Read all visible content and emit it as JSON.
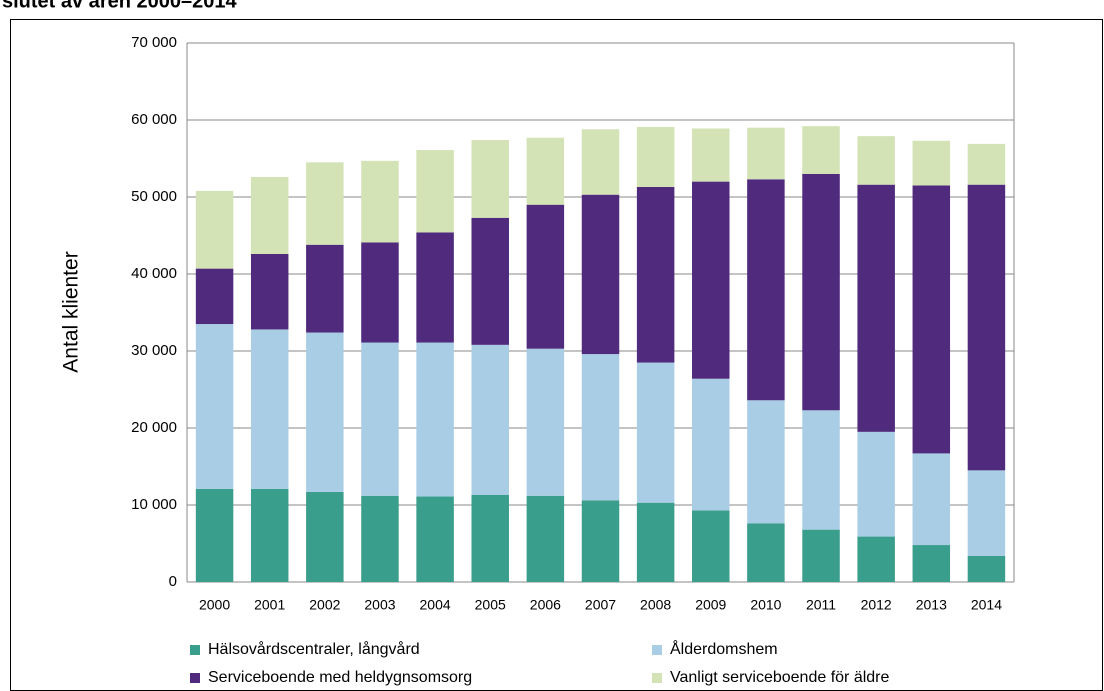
{
  "chart_data": {
    "type": "stacked_bar",
    "title": "slutet av åren 2000–2014",
    "y_label": "Antal klienter",
    "categories": [
      "2000",
      "2001",
      "2002",
      "2003",
      "2004",
      "2005",
      "2006",
      "2007",
      "2008",
      "2009",
      "2010",
      "2011",
      "2012",
      "2013",
      "2014"
    ],
    "series": [
      {
        "name": "Hälsovårdscentraler, långvård",
        "color": "#3a9e8c",
        "values": [
          12100,
          12100,
          11700,
          11200,
          11100,
          11300,
          11200,
          10600,
          10300,
          9300,
          7600,
          6800,
          5900,
          4800,
          3400
        ]
      },
      {
        "name": "Ålderdomshem",
        "color": "#a9cde5",
        "values": [
          21400,
          20700,
          20700,
          19900,
          20000,
          19500,
          19100,
          19000,
          18200,
          17100,
          16000,
          15500,
          13600,
          11900,
          11100
        ]
      },
      {
        "name": "Serviceboende med heldygnsomsorg",
        "color": "#4f2a7d",
        "values": [
          7200,
          9800,
          11400,
          13000,
          14300,
          16500,
          18700,
          20700,
          22800,
          25600,
          28700,
          30700,
          32100,
          34800,
          37100
        ]
      },
      {
        "name": "Vanligt serviceboende för äldre",
        "color": "#d3e3b5",
        "values": [
          10100,
          10000,
          10700,
          10600,
          10700,
          10100,
          8700,
          8500,
          7800,
          6900,
          6700,
          6200,
          6300,
          5800,
          5300
        ]
      }
    ],
    "ylim": [
      0,
      70000
    ],
    "yticks": [
      0,
      {
        "value": 10000,
        "label": "10 000"
      },
      {
        "value": 20000,
        "label": "20 000"
      },
      {
        "value": 30000,
        "label": "30 000"
      },
      {
        "value": 40000,
        "label": "40 000"
      },
      {
        "value": 50000,
        "label": "50 000"
      },
      {
        "value": 60000,
        "label": "60 000"
      },
      {
        "value": 70000,
        "label": "70 000"
      }
    ],
    "grid": true
  }
}
